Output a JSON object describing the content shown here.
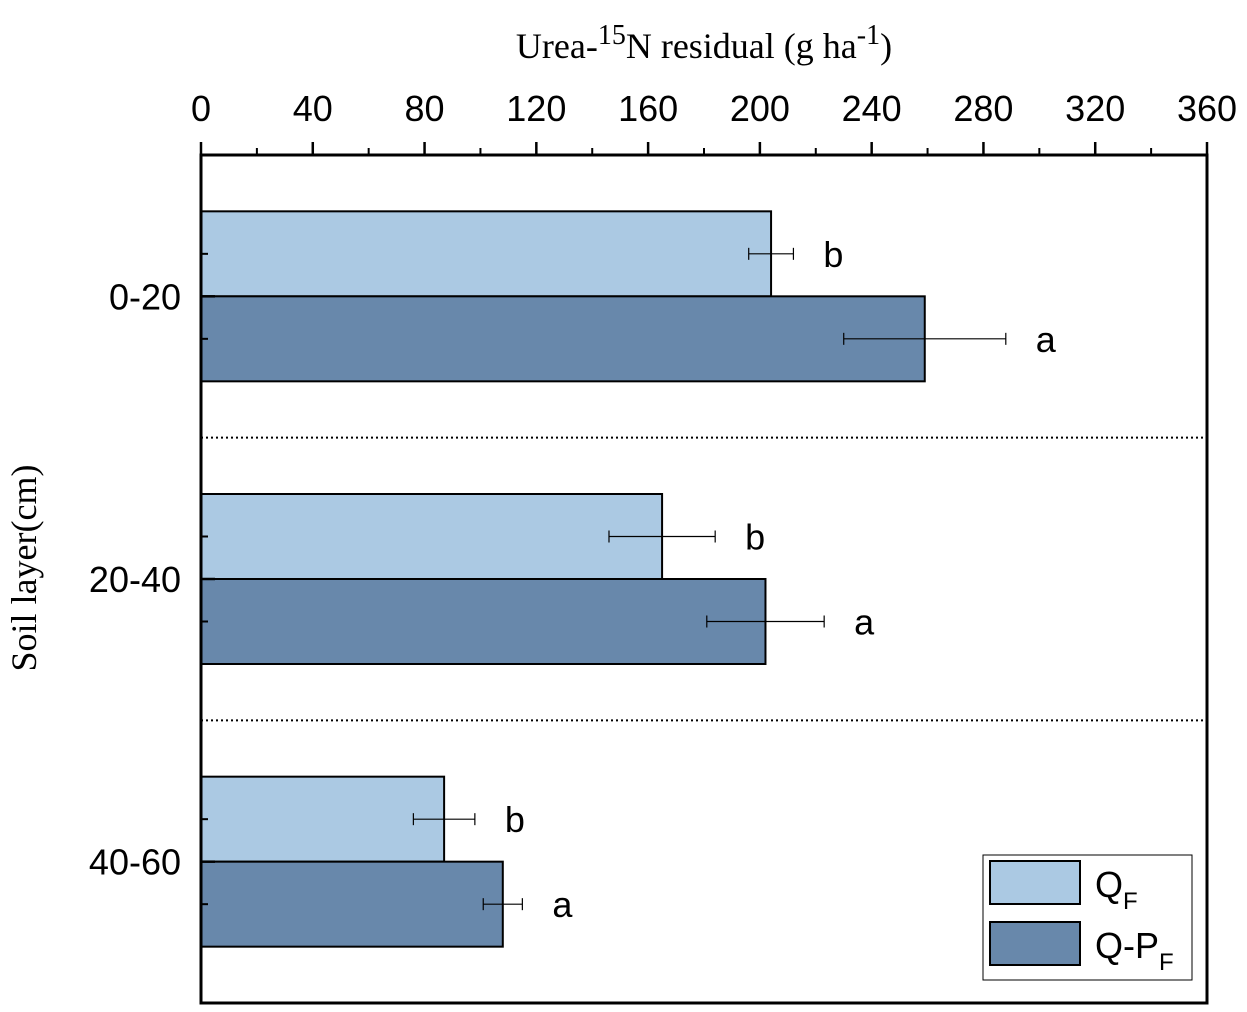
{
  "chart_data": {
    "type": "bar",
    "orientation": "horizontal",
    "xlabel": {
      "pre": "Urea-",
      "sup1": "15",
      "mid": "N residual (g ha",
      "sup2": "-1",
      "post": ")"
    },
    "ylabel": "Soil layer(cm)",
    "xlim": [
      0,
      360
    ],
    "x_ticks": [
      "0",
      "40",
      "80",
      "120",
      "160",
      "200",
      "240",
      "280",
      "320",
      "360"
    ],
    "x_axis_position": "top",
    "categories": [
      "0-20",
      "20-40",
      "40-60"
    ],
    "series": [
      {
        "name": {
          "main": "Q",
          "sub": "F"
        },
        "color": "#abc9e3",
        "values": [
          204,
          165,
          87
        ],
        "errors": [
          8,
          19,
          11
        ],
        "letters": [
          "b",
          "b",
          "b"
        ]
      },
      {
        "name": {
          "main": "Q-P",
          "sub": "F"
        },
        "color": "#6888ab",
        "values": [
          259,
          202,
          108
        ],
        "errors": [
          29,
          21,
          7
        ],
        "letters": [
          "a",
          "a",
          "a"
        ]
      }
    ],
    "category_separators": "dotted",
    "legend_position": "bottom-right"
  }
}
